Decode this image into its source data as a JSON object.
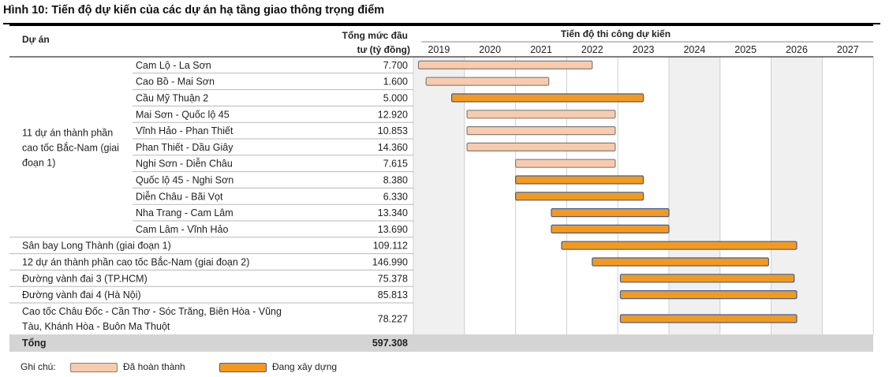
{
  "title": "Hình 10: Tiến độ dự kiến của các dự án hạ tầng giao thông trọng điểm",
  "chart_data": {
    "type": "gantt",
    "headers": {
      "project": "Dự án",
      "investment_line1": "Tổng mức đầu",
      "investment_line2": "tư (tỷ đồng)",
      "timeline": "Tiến độ thi công dự kiến"
    },
    "years": [
      "2019",
      "2020",
      "2021",
      "2022",
      "2023",
      "2024",
      "2025",
      "2026",
      "2027"
    ],
    "shaded_years": [
      "2019",
      "2024",
      "2026"
    ],
    "group": {
      "label_lines": [
        "11 dự án thành phần",
        "cao tốc Bắc-Nam (giai",
        "đoạn 1)"
      ]
    },
    "rows": [
      {
        "name": [
          "Cam Lộ - La Sơn"
        ],
        "investment": "7.700",
        "start": 2019.1,
        "end": 2022.5,
        "status": "completed",
        "grouped": true
      },
      {
        "name": [
          "Cao Bồ - Mai Sơn"
        ],
        "investment": "1.600",
        "start": 2019.25,
        "end": 2021.65,
        "status": "completed",
        "grouped": true
      },
      {
        "name": [
          "Cầu Mỹ Thuận 2"
        ],
        "investment": "5.000",
        "start": 2019.75,
        "end": 2023.5,
        "status": "in_progress",
        "grouped": true
      },
      {
        "name": [
          "Mai Sơn - Quốc lộ 45"
        ],
        "investment": "12.920",
        "start": 2020.05,
        "end": 2022.95,
        "status": "completed",
        "grouped": true
      },
      {
        "name": [
          "Vĩnh Hảo - Phan Thiết"
        ],
        "investment": "10.853",
        "start": 2020.05,
        "end": 2022.95,
        "status": "completed",
        "grouped": true
      },
      {
        "name": [
          "Phan Thiết - Dầu Giây"
        ],
        "investment": "14.360",
        "start": 2020.05,
        "end": 2022.95,
        "status": "completed",
        "grouped": true
      },
      {
        "name": [
          "Nghi Sơn - Diễn Châu"
        ],
        "investment": "7.615",
        "start": 2021.0,
        "end": 2022.95,
        "status": "completed",
        "grouped": true
      },
      {
        "name": [
          "Quốc lộ 45 - Nghi Sơn"
        ],
        "investment": "8.380",
        "start": 2021.0,
        "end": 2023.5,
        "status": "in_progress",
        "grouped": true
      },
      {
        "name": [
          "Diễn Châu - Bãi Vọt"
        ],
        "investment": "6.330",
        "start": 2021.0,
        "end": 2023.5,
        "status": "in_progress",
        "grouped": true
      },
      {
        "name": [
          "Nha Trang - Cam Lâm"
        ],
        "investment": "13.340",
        "start": 2021.7,
        "end": 2024.0,
        "status": "in_progress",
        "grouped": true
      },
      {
        "name": [
          "Cam Lâm - Vĩnh Hảo"
        ],
        "investment": "13.690",
        "start": 2021.7,
        "end": 2024.0,
        "status": "in_progress",
        "grouped": true
      },
      {
        "name": [
          "Sân bay Long Thành (giai đoạn 1)"
        ],
        "investment": "109.112",
        "start": 2021.9,
        "end": 2026.5,
        "status": "in_progress",
        "grouped": false
      },
      {
        "name": [
          "12 dự án thành phần cao tốc Bắc-Nam (giai đoạn 2)"
        ],
        "investment": "146.990",
        "start": 2022.5,
        "end": 2025.95,
        "status": "in_progress",
        "grouped": false
      },
      {
        "name": [
          "Đường vành đai 3 (TP.HCM)"
        ],
        "investment": "75.378",
        "start": 2023.05,
        "end": 2026.45,
        "status": "in_progress",
        "grouped": false
      },
      {
        "name": [
          "Đường vành đai 4 (Hà Nội)"
        ],
        "investment": "85.813",
        "start": 2023.05,
        "end": 2026.5,
        "status": "in_progress",
        "grouped": false
      },
      {
        "name": [
          "Cao tốc Châu Đốc - Cần Thơ - Sóc Trăng, Biên Hòa - Vũng",
          "Tàu, Khánh Hòa - Buôn Ma Thuột"
        ],
        "investment": "78.227",
        "start": 2023.05,
        "end": 2026.5,
        "status": "in_progress",
        "grouped": false
      }
    ],
    "total": {
      "label": "Tổng",
      "value": "597.308"
    },
    "legend": {
      "prefix": "Ghi chú:",
      "items": [
        {
          "key": "completed",
          "label": "Đã hoàn thành",
          "fill": "#f8cbad",
          "stroke": "#7f7f7f"
        },
        {
          "key": "in_progress",
          "label": "Đang xây dựng",
          "fill": "#f39a1e",
          "stroke": "#3e5f9a"
        }
      ]
    },
    "colors": {
      "shade": "#f0f0f0",
      "grid": "#cfcfcf",
      "total_row": "#d4d4d4"
    }
  }
}
